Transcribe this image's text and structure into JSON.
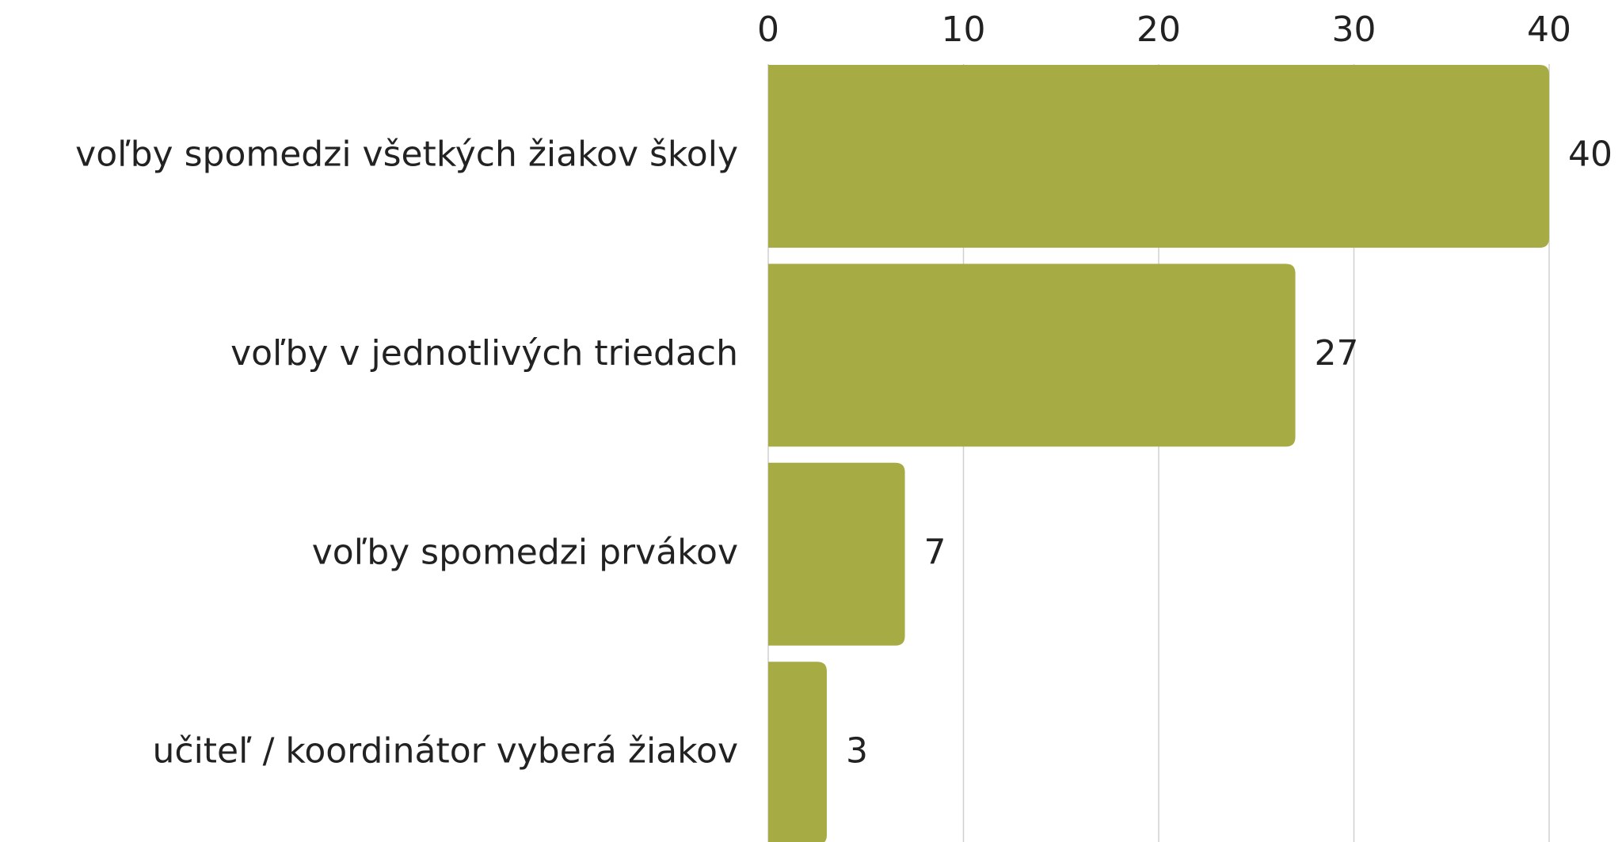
{
  "chart_data": {
    "type": "bar",
    "orientation": "horizontal",
    "categories": [
      "voľby spomedzi všetkých žiakov školy",
      "voľby v jednotlivých triedach",
      "voľby spomedzi prvákov",
      "učiteľ / koordinátor vyberá žiakov"
    ],
    "values": [
      40,
      27,
      7,
      3
    ],
    "color": "#a6ac43",
    "xlim": [
      0,
      40
    ],
    "xticks": [
      0,
      10,
      20,
      30,
      40
    ],
    "grid": true
  }
}
